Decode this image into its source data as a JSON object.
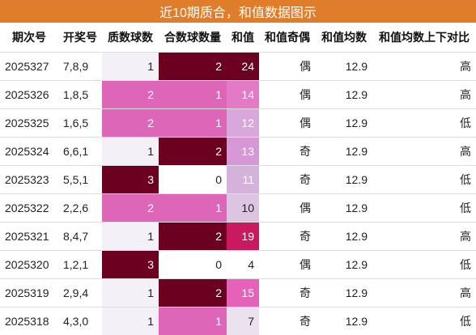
{
  "title": "近10期质合，和值数据图示",
  "colors": {
    "title_bg": "#e07d2b",
    "level_3": "#6b0021",
    "level_2_prime": "#dd66b8",
    "level_2_comp": "#6b0021",
    "level_1": "#f4f0f7",
    "level_0": "#ffffff"
  },
  "headers": [
    "期次号",
    "开奖号",
    "质数球数",
    "合数球数量",
    "和值",
    "和值奇偶",
    "和值均数",
    "和值均数上下对比"
  ],
  "rows": [
    {
      "issue": "2025327",
      "numbers": "7,8,9",
      "primes": "1",
      "composites": "2",
      "sum": "24",
      "parity": "偶",
      "avg": "12.9",
      "compare": "高"
    },
    {
      "issue": "2025326",
      "numbers": "1,8,5",
      "primes": "2",
      "composites": "1",
      "sum": "14",
      "parity": "偶",
      "avg": "12.9",
      "compare": "高"
    },
    {
      "issue": "2025325",
      "numbers": "1,6,5",
      "primes": "2",
      "composites": "1",
      "sum": "12",
      "parity": "偶",
      "avg": "12.9",
      "compare": "低"
    },
    {
      "issue": "2025324",
      "numbers": "6,6,1",
      "primes": "1",
      "composites": "2",
      "sum": "13",
      "parity": "奇",
      "avg": "12.9",
      "compare": "高"
    },
    {
      "issue": "2025323",
      "numbers": "5,5,1",
      "primes": "3",
      "composites": "0",
      "sum": "11",
      "parity": "奇",
      "avg": "12.9",
      "compare": "低"
    },
    {
      "issue": "2025322",
      "numbers": "2,2,6",
      "primes": "2",
      "composites": "1",
      "sum": "10",
      "parity": "偶",
      "avg": "12.9",
      "compare": "低"
    },
    {
      "issue": "2025321",
      "numbers": "8,4,7",
      "primes": "1",
      "composites": "2",
      "sum": "19",
      "parity": "奇",
      "avg": "12.9",
      "compare": "高"
    },
    {
      "issue": "2025320",
      "numbers": "1,2,1",
      "primes": "3",
      "composites": "0",
      "sum": "4",
      "parity": "偶",
      "avg": "12.9",
      "compare": "低"
    },
    {
      "issue": "2025319",
      "numbers": "2,9,4",
      "primes": "1",
      "composites": "2",
      "sum": "15",
      "parity": "奇",
      "avg": "12.9",
      "compare": "高"
    },
    {
      "issue": "2025318",
      "numbers": "4,3,0",
      "primes": "1",
      "composites": "1",
      "sum": "7",
      "parity": "奇",
      "avg": "12.9",
      "compare": "低"
    }
  ]
}
